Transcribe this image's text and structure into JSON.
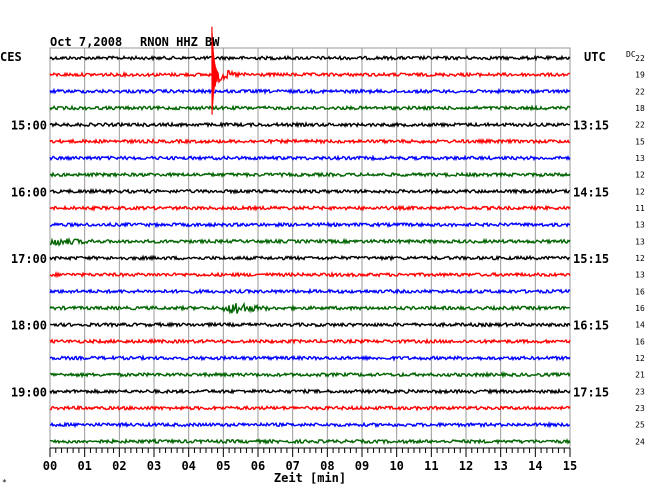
{
  "header": {
    "date": "Oct 7,2008",
    "station": "RNON HHZ BW",
    "left_timezone": "CES",
    "right_timezone": "UTC",
    "dc_label": "DC"
  },
  "chart_data": {
    "type": "line",
    "title": "Oct 7,2008   RNON HHZ BW",
    "xlabel": "Zeit [min]",
    "ylabel": "",
    "x_ticks": [
      "00",
      "01",
      "02",
      "03",
      "04",
      "05",
      "06",
      "07",
      "08",
      "09",
      "10",
      "11",
      "12",
      "13",
      "14",
      "15"
    ],
    "xlim": [
      0,
      15
    ],
    "grid": true,
    "trace_count": 24,
    "trace_colors": [
      "#000000",
      "#ff0000",
      "#0000ff",
      "#006400"
    ],
    "left_time_labels": [
      {
        "row": 4,
        "label": "15:00"
      },
      {
        "row": 8,
        "label": "16:00"
      },
      {
        "row": 12,
        "label": "17:00"
      },
      {
        "row": 16,
        "label": "18:00"
      },
      {
        "row": 20,
        "label": "19:00"
      }
    ],
    "right_time_labels": [
      {
        "row": 4,
        "label": "13:15"
      },
      {
        "row": 8,
        "label": "14:15"
      },
      {
        "row": 12,
        "label": "15:15"
      },
      {
        "row": 16,
        "label": "16:15"
      },
      {
        "row": 20,
        "label": "17:15"
      }
    ],
    "dc_values": [
      "22",
      "19",
      "22",
      "18",
      "22",
      "15",
      "13",
      "12",
      "12",
      "11",
      "13",
      "13",
      "12",
      "13",
      "16",
      "16",
      "14",
      "16",
      "12",
      "21",
      "23",
      "23",
      "25",
      "24"
    ],
    "events": [
      {
        "row": 1,
        "minute": 4.7,
        "description": "strong signal burst"
      },
      {
        "row": 15,
        "minute": 5.4,
        "description": "seismic signal"
      },
      {
        "row": 11,
        "minute": 0.2,
        "description": "noise burst"
      }
    ]
  }
}
